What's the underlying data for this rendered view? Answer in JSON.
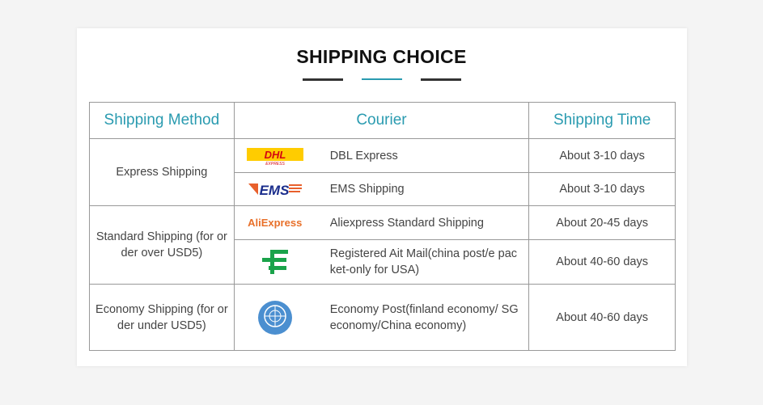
{
  "title": "SHIPPING CHOICE",
  "colors": {
    "accent": "#2a9bb0",
    "dark": "#333333"
  },
  "headers": {
    "method": "Shipping Method",
    "courier": "Courier",
    "time": "Shipping Time"
  },
  "groups": [
    {
      "method": "Express Shipping"
    },
    {
      "method": "Standard Shipping (for or der over USD5)"
    },
    {
      "method": "Economy Shipping (for or der under USD5)"
    }
  ],
  "rows": [
    {
      "logo": "dhl-logo",
      "courier": "DBL Express",
      "time": "About 3-10 days"
    },
    {
      "logo": "ems-logo",
      "courier": "EMS Shipping",
      "time": "About 3-10 days"
    },
    {
      "logo": "aliexpress-logo",
      "logo_text": "AliExpress",
      "courier": "Aliexpress Standard Shipping",
      "time": "About 20-45 days"
    },
    {
      "logo": "china-post-logo",
      "courier": "Registered Ait Mail(china post/e pac ket-only for USA)",
      "time": "About 40-60 days"
    },
    {
      "logo": "un-logo",
      "courier": "Economy Post(finland economy/ SG economy/China economy)",
      "time": "About 40-60 days"
    }
  ]
}
